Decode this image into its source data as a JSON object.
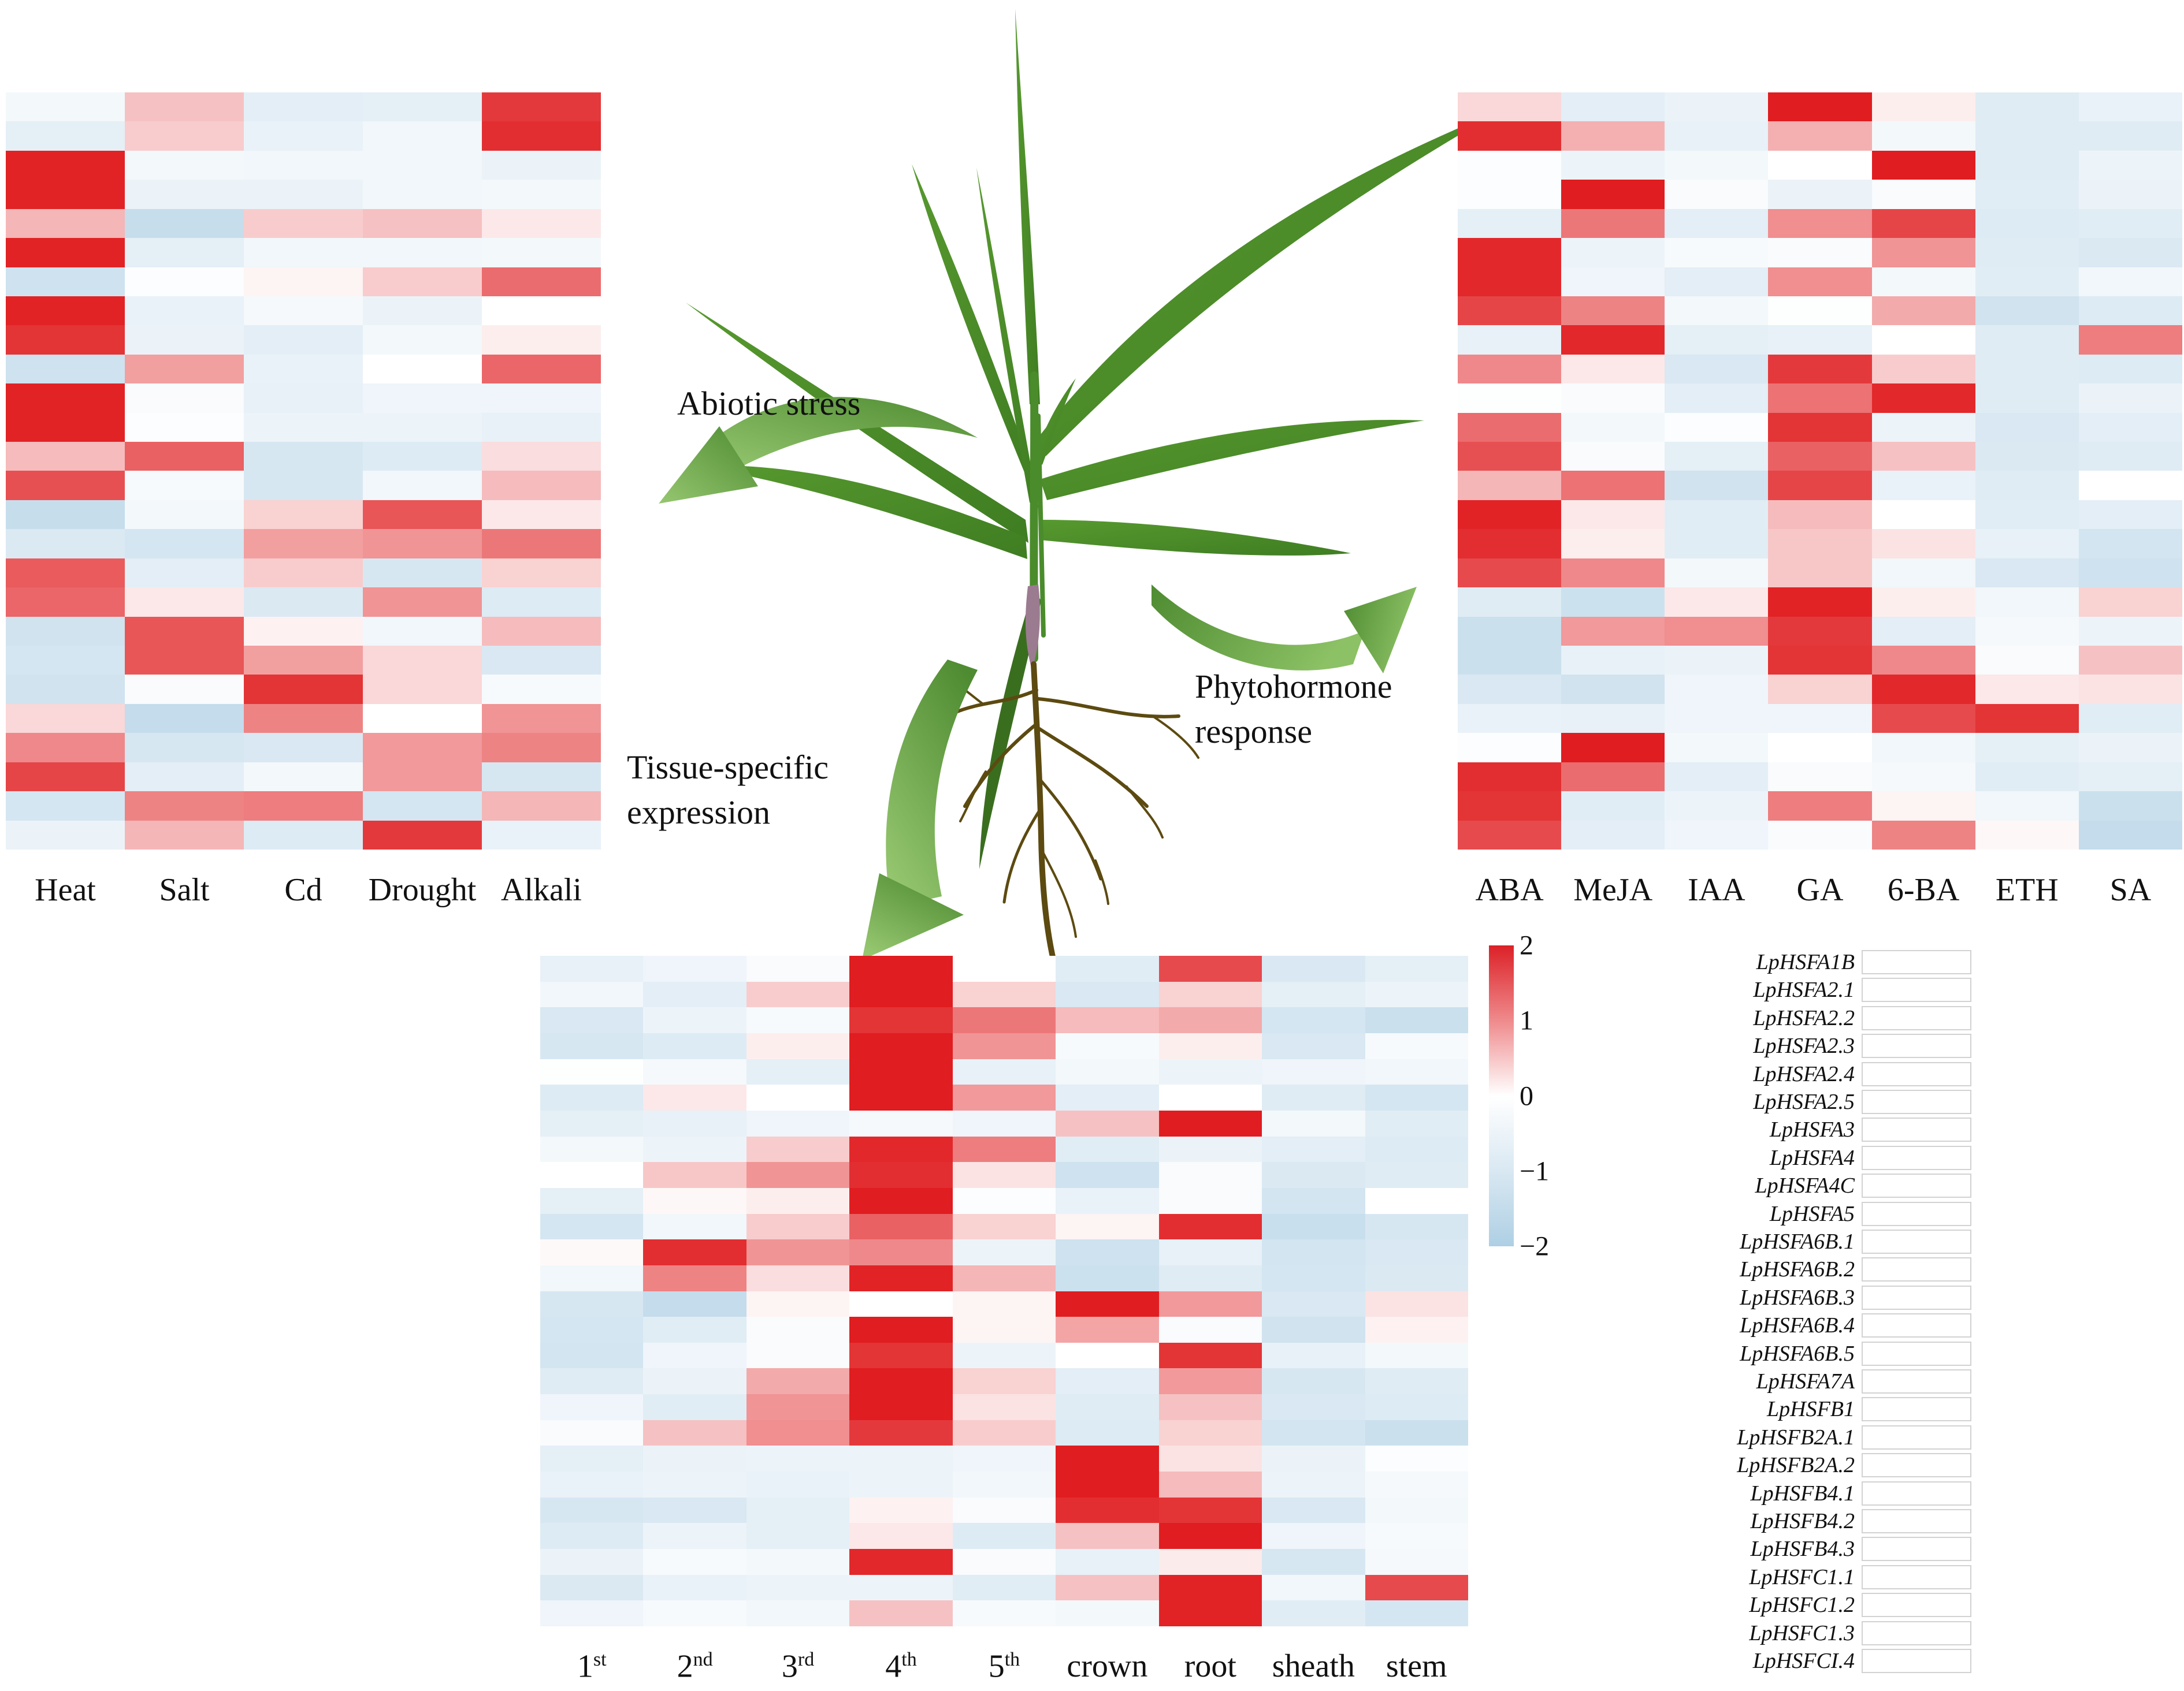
{
  "figure": {
    "annotations": {
      "abiotic": "Abiotic stress",
      "tissue_line1": "Tissue-specific",
      "tissue_line2": "expression",
      "phyto_line1": "Phytohormone",
      "phyto_line2": "response"
    },
    "colors": {
      "heat_max_red": "#e01d20",
      "heat_min_blue": "#aecfe4",
      "arrow_green_dark": "#4e8b31",
      "arrow_green_light": "#96c770",
      "leaf_green": "#4a8c2b",
      "leaf_green_dark": "#3a6e1f",
      "root_brown": "#5c4a10",
      "stem_base_mauve": "#9b7b90"
    },
    "genes": [
      "LpHSFA1B",
      "LpHSFA2.1",
      "LpHSFA2.2",
      "LpHSFA2.3",
      "LpHSFA2.4",
      "LpHSFA2.5",
      "LpHSFA3",
      "LpHSFA4",
      "LpHSFA4C",
      "LpHSFA5",
      "LpHSFA6B.1",
      "LpHSFA6B.2",
      "LpHSFA6B.3",
      "LpHSFA6B.4",
      "LpHSFA6B.5",
      "LpHSFA7A",
      "LpHSFB1",
      "LpHSFB2A.1",
      "LpHSFB2A.2",
      "LpHSFB4.1",
      "LpHSFB4.2",
      "LpHSFB4.3",
      "LpHSFC1.1",
      "LpHSFC1.2",
      "LpHSFC1.3",
      "LpHSFCI.4"
    ],
    "colorbar": {
      "ticks": [
        "2",
        "1",
        "0",
        "−1",
        "−2"
      ],
      "max": 2,
      "min": -2
    }
  },
  "chart_data": [
    {
      "name": "abiotic_stress_heatmap",
      "type": "heatmap",
      "title": "Abiotic stress",
      "columns": [
        "Heat",
        "Salt",
        "Cd",
        "Drought",
        "Alkali"
      ],
      "rows": [
        "LpHSFA1B",
        "LpHSFA2.1",
        "LpHSFA2.2",
        "LpHSFA2.3",
        "LpHSFA2.4",
        "LpHSFA2.5",
        "LpHSFA3",
        "LpHSFA4",
        "LpHSFA4C",
        "LpHSFA5",
        "LpHSFA6B.1",
        "LpHSFA6B.2",
        "LpHSFA6B.3",
        "LpHSFA6B.4",
        "LpHSFA6B.5",
        "LpHSFA7A",
        "LpHSFB1",
        "LpHSFB2A.1",
        "LpHSFB2A.2",
        "LpHSFB4.1",
        "LpHSFB4.2",
        "LpHSFB4.3",
        "LpHSFC1.1",
        "LpHSFC1.2",
        "LpHSFC1.3",
        "LpHSFCI.4"
      ],
      "vlim": [
        -2,
        2
      ],
      "values": [
        [
          -0.3,
          0.55,
          -0.7,
          -0.65,
          1.75
        ],
        [
          -0.65,
          0.45,
          -0.55,
          -0.35,
          1.85
        ],
        [
          1.95,
          -0.3,
          -0.35,
          -0.35,
          -0.5
        ],
        [
          1.95,
          -0.5,
          -0.5,
          -0.35,
          -0.3
        ],
        [
          0.65,
          -1.4,
          0.45,
          0.55,
          0.2
        ],
        [
          1.95,
          -0.65,
          -0.35,
          -0.35,
          -0.3
        ],
        [
          -1.2,
          -0.1,
          0.1,
          0.45,
          1.3
        ],
        [
          1.95,
          -0.55,
          -0.25,
          -0.5,
          0.0
        ],
        [
          1.8,
          -0.5,
          -0.7,
          -0.3,
          0.15
        ],
        [
          -1.2,
          0.85,
          -0.55,
          0.0,
          1.35
        ],
        [
          1.95,
          -0.15,
          -0.6,
          -0.4,
          -0.4
        ],
        [
          1.95,
          -0.1,
          -0.45,
          -0.45,
          -0.6
        ],
        [
          0.6,
          1.4,
          -1.0,
          -0.85,
          0.3
        ],
        [
          1.55,
          -0.2,
          -1.0,
          -0.35,
          0.6
        ],
        [
          -1.4,
          -0.3,
          0.4,
          1.5,
          0.2
        ],
        [
          -0.9,
          -1.05,
          0.85,
          0.95,
          1.2
        ],
        [
          1.45,
          -0.7,
          0.45,
          -1.0,
          0.4
        ],
        [
          1.35,
          0.2,
          -0.9,
          0.95,
          -0.85
        ],
        [
          -1.15,
          1.5,
          0.12,
          -0.35,
          0.6
        ],
        [
          -1.05,
          1.5,
          0.85,
          0.35,
          -0.95
        ],
        [
          -1.15,
          -0.15,
          1.8,
          0.35,
          -0.2
        ],
        [
          0.35,
          -1.45,
          1.1,
          0.0,
          0.95
        ],
        [
          1.05,
          -1.0,
          -0.95,
          0.9,
          1.1
        ],
        [
          1.65,
          -0.7,
          -0.3,
          0.9,
          -1.0
        ],
        [
          -1.05,
          1.1,
          1.15,
          -1.05,
          0.65
        ],
        [
          -0.5,
          0.65,
          -0.85,
          1.75,
          -0.55
        ]
      ]
    },
    {
      "name": "phytohormone_response_heatmap",
      "type": "heatmap",
      "title": "Phytohormone response",
      "columns": [
        "ABA",
        "MeJA",
        "IAA",
        "GA",
        "6-BA",
        "ETH",
        "SA"
      ],
      "rows": [
        "LpHSFA1B",
        "LpHSFA2.1",
        "LpHSFA2.2",
        "LpHSFA2.3",
        "LpHSFA2.4",
        "LpHSFA2.5",
        "LpHSFA3",
        "LpHSFA4",
        "LpHSFA4C",
        "LpHSFA5",
        "LpHSFA6B.1",
        "LpHSFA6B.2",
        "LpHSFA6B.3",
        "LpHSFA6B.4",
        "LpHSFA6B.5",
        "LpHSFA7A",
        "LpHSFB1",
        "LpHSFB2A.1",
        "LpHSFB2A.2",
        "LpHSFB4.1",
        "LpHSFB4.2",
        "LpHSFB4.3",
        "LpHSFC1.1",
        "LpHSFC1.2",
        "LpHSFC1.3",
        "LpHSFCI.4"
      ],
      "vlim": [
        -2,
        2
      ],
      "values": [
        [
          0.35,
          -0.7,
          -0.5,
          2.0,
          0.15,
          -0.8,
          -0.55
        ],
        [
          1.85,
          0.7,
          -0.6,
          0.7,
          -0.3,
          -0.8,
          -0.8
        ],
        [
          -0.1,
          -0.45,
          -0.3,
          0.0,
          2.0,
          -0.8,
          -0.45
        ],
        [
          -0.1,
          2.0,
          -0.15,
          -0.5,
          -0.15,
          -0.75,
          -0.5
        ],
        [
          -0.65,
          1.2,
          -0.7,
          1.0,
          1.65,
          -0.85,
          -0.75
        ],
        [
          1.9,
          -0.45,
          -0.2,
          -0.15,
          0.95,
          -0.8,
          -0.9
        ],
        [
          1.9,
          -0.4,
          -0.7,
          1.0,
          -0.3,
          -0.75,
          -0.35
        ],
        [
          1.65,
          1.1,
          -0.3,
          -0.05,
          0.75,
          -1.15,
          -0.85
        ],
        [
          -0.6,
          1.9,
          -0.65,
          -0.6,
          0.0,
          -0.8,
          1.15
        ],
        [
          1.05,
          0.2,
          -0.95,
          1.75,
          0.45,
          -0.8,
          -0.85
        ],
        [
          -0.05,
          -0.15,
          -0.7,
          1.25,
          1.9,
          -0.8,
          -0.5
        ],
        [
          1.3,
          -0.3,
          -0.1,
          1.8,
          -0.45,
          -0.95,
          -0.7
        ],
        [
          1.55,
          -0.15,
          -0.65,
          1.4,
          0.55,
          -0.9,
          -0.8
        ],
        [
          0.65,
          1.25,
          -1.15,
          1.65,
          -0.55,
          -0.8,
          0.0
        ],
        [
          1.95,
          0.2,
          -0.75,
          0.6,
          0.0,
          -0.75,
          -0.7
        ],
        [
          1.85,
          0.15,
          -0.75,
          0.5,
          0.25,
          -0.6,
          -1.1
        ],
        [
          1.6,
          1.05,
          -0.3,
          0.5,
          -0.35,
          -0.95,
          -1.2
        ],
        [
          -0.8,
          -1.25,
          0.2,
          1.95,
          0.15,
          -0.35,
          0.4
        ],
        [
          -1.3,
          0.9,
          1.0,
          1.75,
          -0.7,
          -0.25,
          -0.45
        ],
        [
          -1.3,
          -0.6,
          -0.5,
          1.8,
          1.05,
          -0.15,
          0.55
        ],
        [
          -0.95,
          -1.15,
          -0.4,
          0.4,
          1.9,
          0.2,
          0.25
        ],
        [
          -0.55,
          -0.6,
          -0.4,
          -0.4,
          1.6,
          1.8,
          -0.75
        ],
        [
          -0.1,
          2.0,
          -0.3,
          0.0,
          -0.35,
          -0.65,
          -0.5
        ],
        [
          1.85,
          1.3,
          -0.7,
          -0.15,
          -0.25,
          -0.75,
          -0.65
        ],
        [
          1.8,
          -0.75,
          -0.45,
          1.15,
          0.1,
          -0.35,
          -1.3
        ],
        [
          1.6,
          -0.7,
          -0.4,
          -0.15,
          1.1,
          0.07,
          -1.45
        ]
      ]
    },
    {
      "name": "tissue_specific_expression_heatmap",
      "type": "heatmap",
      "title": "Tissue-specific expression",
      "columns": [
        "1st",
        "2nd",
        "3rd",
        "4th",
        "5th",
        "crown",
        "root",
        "sheath",
        "stem"
      ],
      "rows": [
        "LpHSFA1B",
        "LpHSFA2.1",
        "LpHSFA2.2",
        "LpHSFA2.3",
        "LpHSFA2.4",
        "LpHSFA2.5",
        "LpHSFA3",
        "LpHSFA4",
        "LpHSFA4C",
        "LpHSFA5",
        "LpHSFA6B.1",
        "LpHSFA6B.2",
        "LpHSFA6B.3",
        "LpHSFA6B.4",
        "LpHSFA6B.5",
        "LpHSFA7A",
        "LpHSFB1",
        "LpHSFB2A.1",
        "LpHSFB2A.2",
        "LpHSFB4.1",
        "LpHSFB4.2",
        "LpHSFB4.3",
        "LpHSFC1.1",
        "LpHSFC1.2",
        "LpHSFC1.3",
        "LpHSFCI.4"
      ],
      "vlim": [
        -2,
        2
      ],
      "values": [
        [
          -0.6,
          -0.4,
          -0.15,
          2.0,
          0.0,
          -0.75,
          1.6,
          -0.95,
          -0.65
        ],
        [
          -0.35,
          -0.7,
          0.45,
          2.0,
          0.4,
          -0.95,
          0.4,
          -0.65,
          -0.45
        ],
        [
          -0.95,
          -0.45,
          -0.2,
          1.8,
          1.2,
          0.6,
          0.75,
          -1.05,
          -1.3
        ],
        [
          -1.0,
          -0.85,
          0.15,
          2.0,
          0.95,
          -0.2,
          0.15,
          -0.95,
          -0.2
        ],
        [
          -0.05,
          -0.25,
          -0.65,
          2.0,
          -0.6,
          -0.3,
          -0.45,
          -0.4,
          -0.35
        ],
        [
          -0.85,
          0.2,
          0.0,
          2.0,
          0.9,
          -0.7,
          0.0,
          -0.8,
          -1.05
        ],
        [
          -0.65,
          -0.6,
          -0.4,
          -0.25,
          -0.4,
          0.55,
          2.0,
          -0.3,
          -0.75
        ],
        [
          -0.3,
          -0.45,
          0.45,
          1.9,
          1.15,
          -0.75,
          -0.5,
          -0.7,
          -0.85
        ],
        [
          0.0,
          0.5,
          0.95,
          1.85,
          0.25,
          -1.2,
          -0.15,
          -0.9,
          -0.8
        ],
        [
          -0.65,
          0.07,
          0.15,
          2.0,
          -0.1,
          -0.55,
          -0.15,
          -1.1,
          0.0
        ],
        [
          -1.05,
          -0.35,
          0.45,
          1.4,
          0.4,
          0.1,
          1.85,
          -1.35,
          -1.0
        ],
        [
          0.05,
          1.85,
          0.95,
          1.05,
          -0.45,
          -1.2,
          -0.6,
          -1.1,
          -0.95
        ],
        [
          -0.35,
          1.1,
          0.3,
          1.95,
          0.65,
          -1.25,
          -0.8,
          -1.05,
          -0.9
        ],
        [
          -1.0,
          -1.45,
          0.1,
          0.0,
          0.1,
          2.0,
          0.9,
          -0.95,
          0.25
        ],
        [
          -1.05,
          -0.75,
          -0.15,
          2.0,
          0.1,
          0.8,
          -0.15,
          -1.15,
          0.12
        ],
        [
          -1.1,
          -0.4,
          -0.15,
          1.8,
          -0.45,
          0.0,
          1.8,
          -0.6,
          -0.3
        ],
        [
          -0.8,
          -0.5,
          0.75,
          2.0,
          0.4,
          -0.7,
          0.9,
          -1.0,
          -0.8
        ],
        [
          -0.4,
          -0.75,
          0.95,
          2.0,
          0.25,
          -0.8,
          0.55,
          -0.95,
          -0.85
        ],
        [
          -0.15,
          0.55,
          1.0,
          1.75,
          0.45,
          -0.85,
          0.4,
          -1.1,
          -1.3
        ],
        [
          -0.65,
          -0.5,
          -0.45,
          -0.45,
          -0.4,
          2.0,
          0.25,
          -0.5,
          -0.1
        ],
        [
          -0.55,
          -0.45,
          -0.55,
          -0.45,
          -0.35,
          2.0,
          0.6,
          -0.45,
          -0.25
        ],
        [
          -1.0,
          -0.95,
          -0.65,
          0.12,
          -0.15,
          1.85,
          1.8,
          -0.95,
          -0.3
        ],
        [
          -0.85,
          -0.45,
          -0.65,
          0.2,
          -0.85,
          0.55,
          2.0,
          -0.4,
          -0.2
        ],
        [
          -0.5,
          -0.2,
          -0.3,
          1.9,
          -0.15,
          -0.6,
          0.18,
          -1.0,
          -0.25
        ],
        [
          -0.9,
          -0.55,
          -0.45,
          -0.45,
          -0.75,
          0.55,
          1.95,
          -0.35,
          1.6
        ],
        [
          -0.4,
          -0.2,
          -0.35,
          0.55,
          -0.2,
          -0.3,
          1.95,
          -0.75,
          -1.05
        ]
      ]
    }
  ]
}
